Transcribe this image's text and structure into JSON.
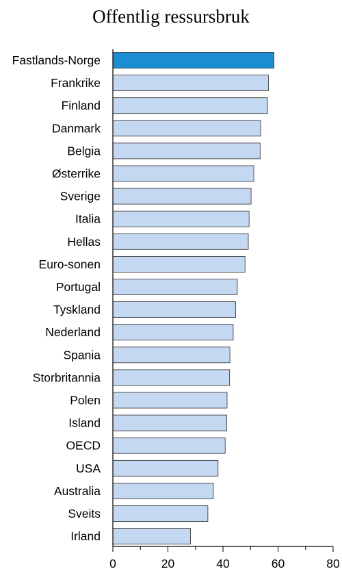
{
  "chart_data": {
    "type": "bar",
    "orientation": "horizontal",
    "title": "Offentlig ressursbruk",
    "xlabel": "",
    "ylabel": "",
    "xlim": [
      0,
      80
    ],
    "xticks": [
      0,
      20,
      40,
      60,
      80
    ],
    "grid": false,
    "categories": [
      "Fastlands-Norge",
      "Frankrike",
      "Finland",
      "Danmark",
      "Belgia",
      "Østerrike",
      "Sverige",
      "Italia",
      "Hellas",
      "Euro-sonen",
      "Portugal",
      "Tyskland",
      "Nederland",
      "Spania",
      "Storbritannia",
      "Polen",
      "Island",
      "OECD",
      "USA",
      "Australia",
      "Sveits",
      "Irland"
    ],
    "values": [
      58.5,
      56.5,
      56.2,
      53.7,
      53.5,
      51.2,
      50.2,
      49.5,
      49.2,
      48.0,
      45.2,
      44.6,
      43.7,
      42.5,
      42.4,
      41.5,
      41.4,
      40.8,
      38.2,
      36.5,
      34.5,
      28.2
    ],
    "colors": {
      "highlight_fill": "#1a8ed1",
      "default_fill": "#c5d8f1",
      "bar_stroke": "#2b2b2b",
      "axis": "#000000"
    },
    "highlight_index": 0
  }
}
